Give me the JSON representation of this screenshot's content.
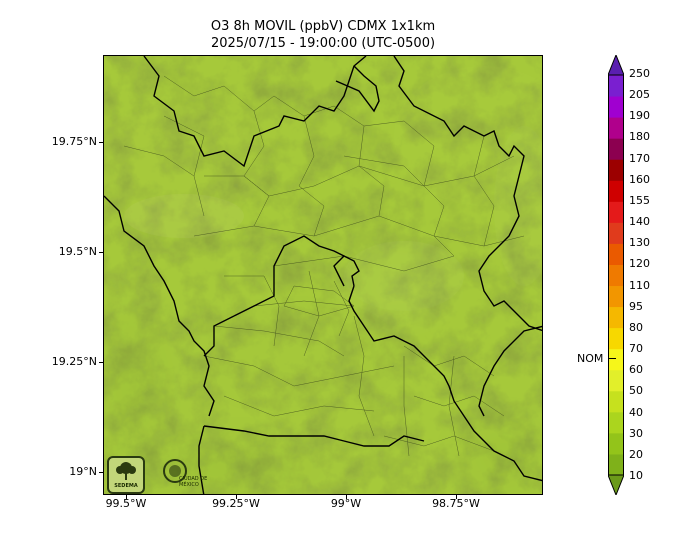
{
  "title": {
    "line1": "O3 8h MOVIL (ppbV) CDMX 1x1km",
    "line2": "2025/07/15 - 19:00:00 (UTC-0500)"
  },
  "axes": {
    "y_ticks": [
      "19.75°N",
      "19.5°N",
      "19.25°N",
      "19°N"
    ],
    "x_ticks": [
      "99.5°W",
      "99.25°W",
      "99°W",
      "98.75°W"
    ]
  },
  "colorbar": {
    "levels": [
      "10",
      "20",
      "30",
      "40",
      "50",
      "60",
      "70",
      "80",
      "95",
      "110",
      "120",
      "130",
      "140",
      "155",
      "160",
      "170",
      "180",
      "190",
      "205",
      "250"
    ],
    "colors": [
      "#6b9a1a",
      "#7fb11a",
      "#93c41a",
      "#abd51e",
      "#c6e11e",
      "#e2ef2a",
      "#f6f61a",
      "#f7d800",
      "#f5b800",
      "#f29600",
      "#ef7a00",
      "#ea5a00",
      "#e03b1c",
      "#e41a1a",
      "#cf0000",
      "#9c0000",
      "#8c0050",
      "#b0008c",
      "#a000d0",
      "#7a1fd0",
      "#5a1fb0"
    ],
    "marker_label": "NOM"
  },
  "logos": {
    "logo1": "SEDEMA",
    "logo2": "CIUDAD DE MÉXICO"
  }
}
